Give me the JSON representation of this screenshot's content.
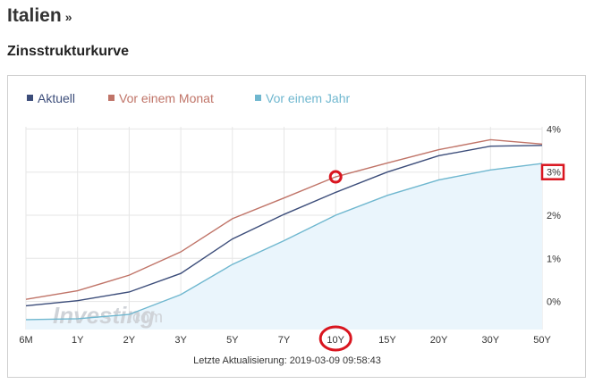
{
  "header": {
    "title": "Italien",
    "title_suffix": "»",
    "section_title": "Zinsstrukturkurve"
  },
  "footer": {
    "last_update": "Letzte Aktualisierung: 2019-03-09 09:58:43"
  },
  "watermark": {
    "brand": "Investing",
    "suffix": ".com"
  },
  "colors": {
    "aktuell": "#3c4d7a",
    "monat": "#c07468",
    "jahr": "#6fb7cf",
    "area": "#eaf5fc",
    "highlight": "#d9151f"
  },
  "chart_data": {
    "type": "line",
    "categories": [
      "6M",
      "1Y",
      "2Y",
      "3Y",
      "5Y",
      "7Y",
      "10Y",
      "15Y",
      "20Y",
      "30Y",
      "50Y"
    ],
    "y_ticks": [
      "4%",
      "3%",
      "2%",
      "1%",
      "0%"
    ],
    "y_tick_values": [
      4,
      3,
      2,
      1,
      0
    ],
    "ylim": [
      -0.65,
      4.05
    ],
    "y_axis_position": "right",
    "grid": true,
    "legend_position": "top-left",
    "series": [
      {
        "name": "Aktuell",
        "color": "#3c4d7a",
        "values": [
          -0.1,
          0.02,
          0.22,
          0.65,
          1.45,
          2.02,
          2.53,
          3.0,
          3.38,
          3.6,
          3.62
        ]
      },
      {
        "name": "Vor einem Monat",
        "color": "#c07468",
        "values": [
          0.05,
          0.25,
          0.61,
          1.15,
          1.92,
          2.4,
          2.89,
          3.21,
          3.52,
          3.75,
          3.65
        ]
      },
      {
        "name": "Vor einem Jahr",
        "color": "#6fb7cf",
        "values": [
          -0.42,
          -0.4,
          -0.3,
          0.16,
          0.86,
          1.41,
          2.0,
          2.46,
          2.82,
          3.05,
          3.2
        ]
      }
    ],
    "highlighted_tick": "3%",
    "highlighted_category": "10Y",
    "highlighted_point": {
      "series": "Vor einem Monat",
      "category": "10Y"
    }
  }
}
